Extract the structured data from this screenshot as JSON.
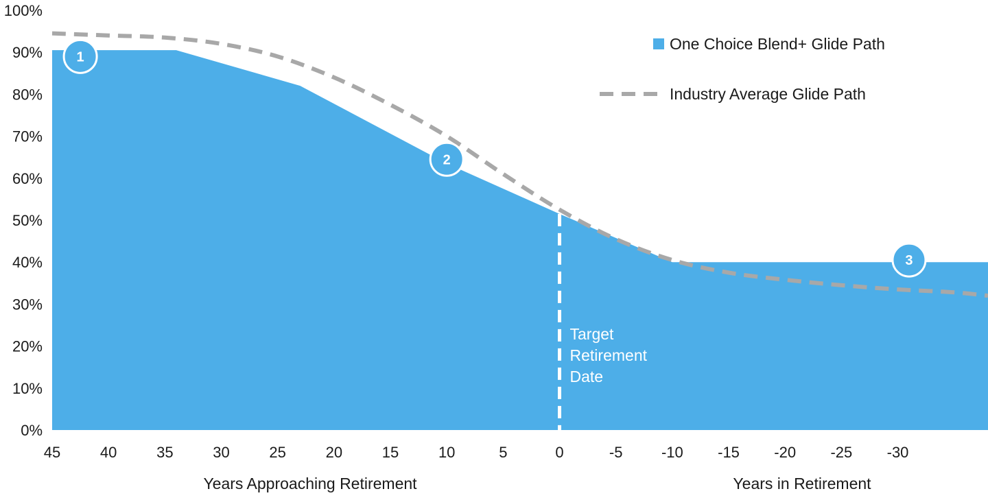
{
  "chart_data": {
    "type": "area",
    "x_tick_labels": [
      "45",
      "40",
      "35",
      "30",
      "25",
      "20",
      "15",
      "10",
      "5",
      "0",
      "-5",
      "-10",
      "-15",
      "-20",
      "-25",
      "-30"
    ],
    "y_tick_labels": [
      "0%",
      "10%",
      "20%",
      "30%",
      "40%",
      "50%",
      "60%",
      "70%",
      "80%",
      "90%",
      "100%"
    ],
    "xlim": [
      45,
      -38
    ],
    "ylim": [
      0,
      100
    ],
    "x_axis_titles": {
      "approaching": "Years Approaching Retirement",
      "in_retirement": "Years in Retirement"
    },
    "series": [
      {
        "name": "One Choice Blend+ Glide Path",
        "style": "area",
        "color": "#4daee8",
        "x": [
          45,
          34,
          23,
          10,
          0,
          -10,
          -38
        ],
        "y": [
          90.5,
          90.5,
          82,
          63.5,
          51.5,
          40,
          40
        ]
      },
      {
        "name": "Industry Average Glide Path",
        "style": "dashed-line",
        "color": "#a8a8a8",
        "x": [
          45,
          40,
          35,
          30,
          25,
          20,
          15,
          10,
          5,
          0,
          -5,
          -10,
          -15,
          -20,
          -25,
          -30,
          -35,
          -38
        ],
        "y": [
          94.5,
          94,
          93.5,
          92,
          89,
          84,
          77.5,
          70,
          61,
          52.5,
          45.5,
          40.5,
          37.5,
          35.8,
          34.5,
          33.5,
          32.8,
          32
        ]
      }
    ],
    "annotations": {
      "target_line_x": 0,
      "target_label": [
        "Target",
        "Retirement",
        "Date"
      ]
    },
    "markers": [
      {
        "label": "1",
        "x": 42.5,
        "y": 89
      },
      {
        "label": "2",
        "x": 10,
        "y": 64.5
      },
      {
        "label": "3",
        "x": -31,
        "y": 40.5
      }
    ],
    "legend": {
      "position": "top-right",
      "items": [
        "One Choice Blend+ Glide Path",
        "Industry Average Glide Path"
      ]
    },
    "grid": false
  }
}
